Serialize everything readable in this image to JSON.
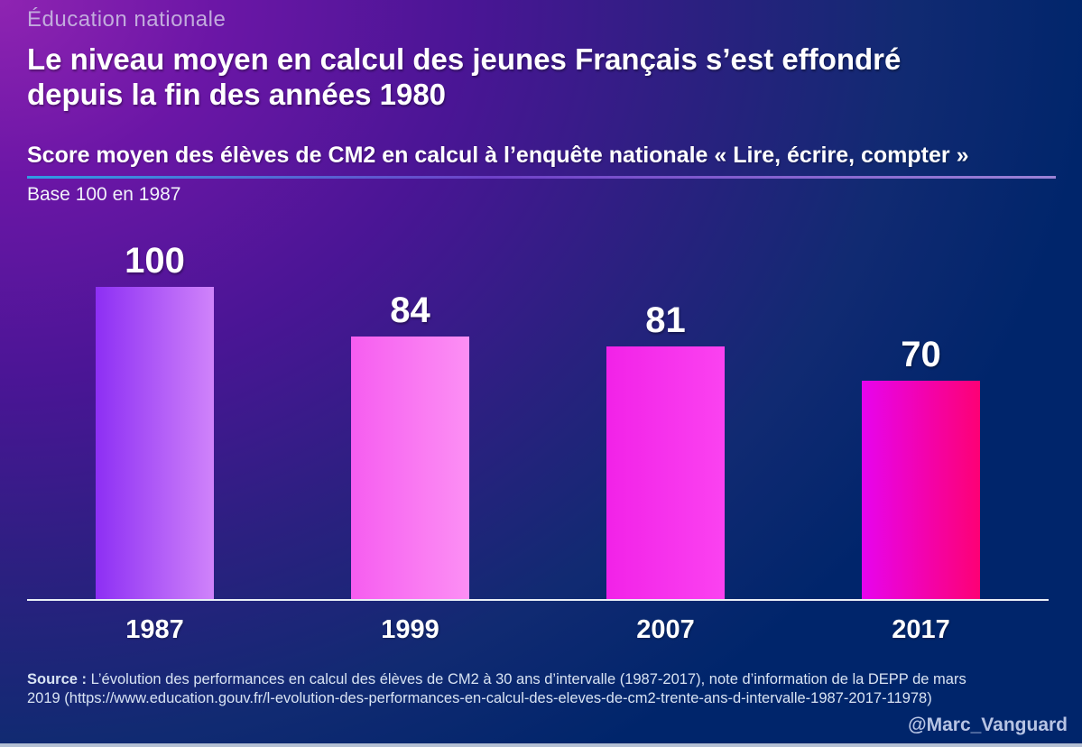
{
  "page": {
    "kicker": "Éducation nationale",
    "title_line1": "Le niveau moyen en calcul des jeunes Français s’est effondré",
    "title_line2": "depuis la fin des années 1980",
    "subtitle": "Score moyen des élèves de CM2 en calcul à l’enquête nationale « Lire, écrire, compter »",
    "base_note": "Base 100 en 1987",
    "source_label": "Source :",
    "source_line1": " L’évolution des performances en calcul des élèves de CM2 à 30 ans d’intervalle (1987-2017), note d’information de la DEPP de mars",
    "source_line2": "2019 (https://www.education.gouv.fr/l-evolution-des-performances-en-calcul-des-eleves-de-cm2-trente-ans-d-intervalle-1987-2017-11978)",
    "credit": "@Marc_Vanguard"
  },
  "colors": {
    "background_top_left": "#8f24b2",
    "background_main": "#00256b",
    "axis_line": "#e9eff7",
    "subtitle_rule_start": "#2f9ce4",
    "subtitle_rule_end": "#9b82d6",
    "kicker_text": "#c2abdd",
    "source_text": "#d8e3f3",
    "credit_text": "#b7c4e4",
    "bottom_border": "#b3bfd3"
  },
  "chart_data": {
    "type": "bar",
    "categories": [
      "1987",
      "1999",
      "2007",
      "2017"
    ],
    "values": [
      100,
      84,
      81,
      70
    ],
    "title": "Score moyen des élèves de CM2 en calcul à l’enquête nationale « Lire, écrire, compter »",
    "xlabel": "",
    "ylabel": "Base 100 en 1987",
    "ylim": [
      0,
      100
    ],
    "grid": false,
    "legend": false,
    "value_labels": "above bars",
    "bar_gradients": [
      [
        "#8d2ff4",
        "#d083fa"
      ],
      [
        "#f65df0",
        "#fc8ff4"
      ],
      [
        "#f222e8",
        "#fb42f0"
      ],
      [
        "#e704ee",
        "#fd0175"
      ]
    ]
  }
}
